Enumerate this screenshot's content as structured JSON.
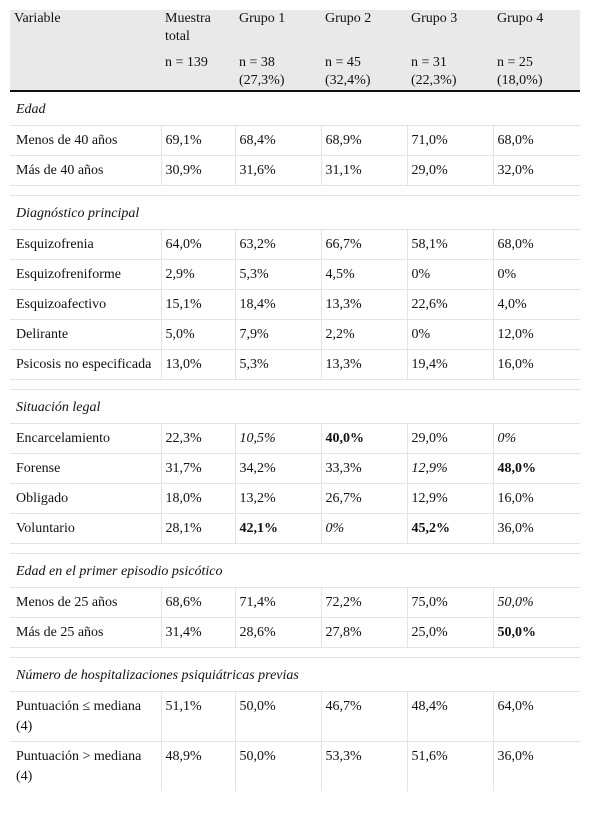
{
  "header": {
    "variable": "Variable",
    "columns": [
      {
        "label": "Muestra total",
        "n": "n = 139",
        "pct": ""
      },
      {
        "label": "Grupo 1",
        "n": "n = 38",
        "pct": "(27,3%)"
      },
      {
        "label": "Grupo 2",
        "n": "n = 45",
        "pct": "(32,4%)"
      },
      {
        "label": "Grupo 3",
        "n": "n = 31",
        "pct": "(22,3%)"
      },
      {
        "label": "Grupo 4",
        "n": "n = 25",
        "pct": "(18,0%)"
      }
    ]
  },
  "sections": [
    {
      "title": "Edad",
      "rows": [
        {
          "label": "Menos de 40 años",
          "values": [
            {
              "t": "69,1%"
            },
            {
              "t": "68,4%"
            },
            {
              "t": "68,9%"
            },
            {
              "t": "71,0%"
            },
            {
              "t": "68,0%"
            }
          ]
        },
        {
          "label": "Más de 40 años",
          "values": [
            {
              "t": "30,9%"
            },
            {
              "t": "31,6%"
            },
            {
              "t": "31,1%"
            },
            {
              "t": "29,0%"
            },
            {
              "t": "32,0%"
            }
          ]
        }
      ]
    },
    {
      "title": "Diagnóstico principal",
      "rows": [
        {
          "label": "Esquizofrenia",
          "values": [
            {
              "t": "64,0%"
            },
            {
              "t": "63,2%"
            },
            {
              "t": "66,7%"
            },
            {
              "t": "58,1%"
            },
            {
              "t": "68,0%"
            }
          ]
        },
        {
          "label": "Esquizofreniforme",
          "values": [
            {
              "t": "2,9%"
            },
            {
              "t": "5,3%"
            },
            {
              "t": "4,5%"
            },
            {
              "t": "0%"
            },
            {
              "t": "0%"
            }
          ]
        },
        {
          "label": "Esquizoafectivo",
          "values": [
            {
              "t": "15,1%"
            },
            {
              "t": "18,4%"
            },
            {
              "t": "13,3%"
            },
            {
              "t": "22,6%"
            },
            {
              "t": "4,0%"
            }
          ]
        },
        {
          "label": "Delirante",
          "values": [
            {
              "t": "5,0%"
            },
            {
              "t": "7,9%"
            },
            {
              "t": "2,2%"
            },
            {
              "t": "0%"
            },
            {
              "t": "12,0%"
            }
          ]
        },
        {
          "label": "Psicosis no especificada",
          "values": [
            {
              "t": "13,0%"
            },
            {
              "t": "5,3%"
            },
            {
              "t": "13,3%"
            },
            {
              "t": "19,4%"
            },
            {
              "t": "16,0%"
            }
          ]
        }
      ]
    },
    {
      "title": "Situación legal",
      "rows": [
        {
          "label": "Encarcelamiento",
          "values": [
            {
              "t": "22,3%"
            },
            {
              "t": "10,5%",
              "s": "it"
            },
            {
              "t": "40,0%",
              "s": "bd"
            },
            {
              "t": "29,0%"
            },
            {
              "t": "0%",
              "s": "it"
            }
          ]
        },
        {
          "label": "Forense",
          "values": [
            {
              "t": "31,7%"
            },
            {
              "t": "34,2%"
            },
            {
              "t": "33,3%"
            },
            {
              "t": "12,9%",
              "s": "it"
            },
            {
              "t": "48,0%",
              "s": "bd"
            }
          ]
        },
        {
          "label": "Obligado",
          "values": [
            {
              "t": "18,0%"
            },
            {
              "t": "13,2%"
            },
            {
              "t": "26,7%"
            },
            {
              "t": "12,9%"
            },
            {
              "t": "16,0%"
            }
          ]
        },
        {
          "label": "Voluntario",
          "values": [
            {
              "t": "28,1%"
            },
            {
              "t": "42,1%",
              "s": "bd"
            },
            {
              "t": "0%",
              "s": "it"
            },
            {
              "t": "45,2%",
              "s": "bd"
            },
            {
              "t": "36,0%"
            }
          ]
        }
      ]
    },
    {
      "title": "Edad en el primer episodio psicótico",
      "rows": [
        {
          "label": "Menos de 25 años",
          "values": [
            {
              "t": "68,6%"
            },
            {
              "t": "71,4%"
            },
            {
              "t": "72,2%"
            },
            {
              "t": "75,0%"
            },
            {
              "t": "50,0%",
              "s": "it"
            }
          ]
        },
        {
          "label": "Más de 25 años",
          "values": [
            {
              "t": "31,4%"
            },
            {
              "t": "28,6%"
            },
            {
              "t": "27,8%"
            },
            {
              "t": "25,0%"
            },
            {
              "t": "50,0%",
              "s": "bd"
            }
          ]
        }
      ]
    },
    {
      "title": "Número de hospitalizaciones psiquiátricas previas",
      "rows": [
        {
          "label": "Puntuación ≤ mediana (4)",
          "values": [
            {
              "t": "51,1%"
            },
            {
              "t": "50,0%"
            },
            {
              "t": "46,7%"
            },
            {
              "t": "48,4%"
            },
            {
              "t": "64,0%"
            }
          ]
        },
        {
          "label": "Puntuación > mediana (4)",
          "values": [
            {
              "t": "48,9%"
            },
            {
              "t": "50,0%"
            },
            {
              "t": "53,3%"
            },
            {
              "t": "51,6%"
            },
            {
              "t": "36,0%"
            }
          ]
        }
      ]
    }
  ]
}
